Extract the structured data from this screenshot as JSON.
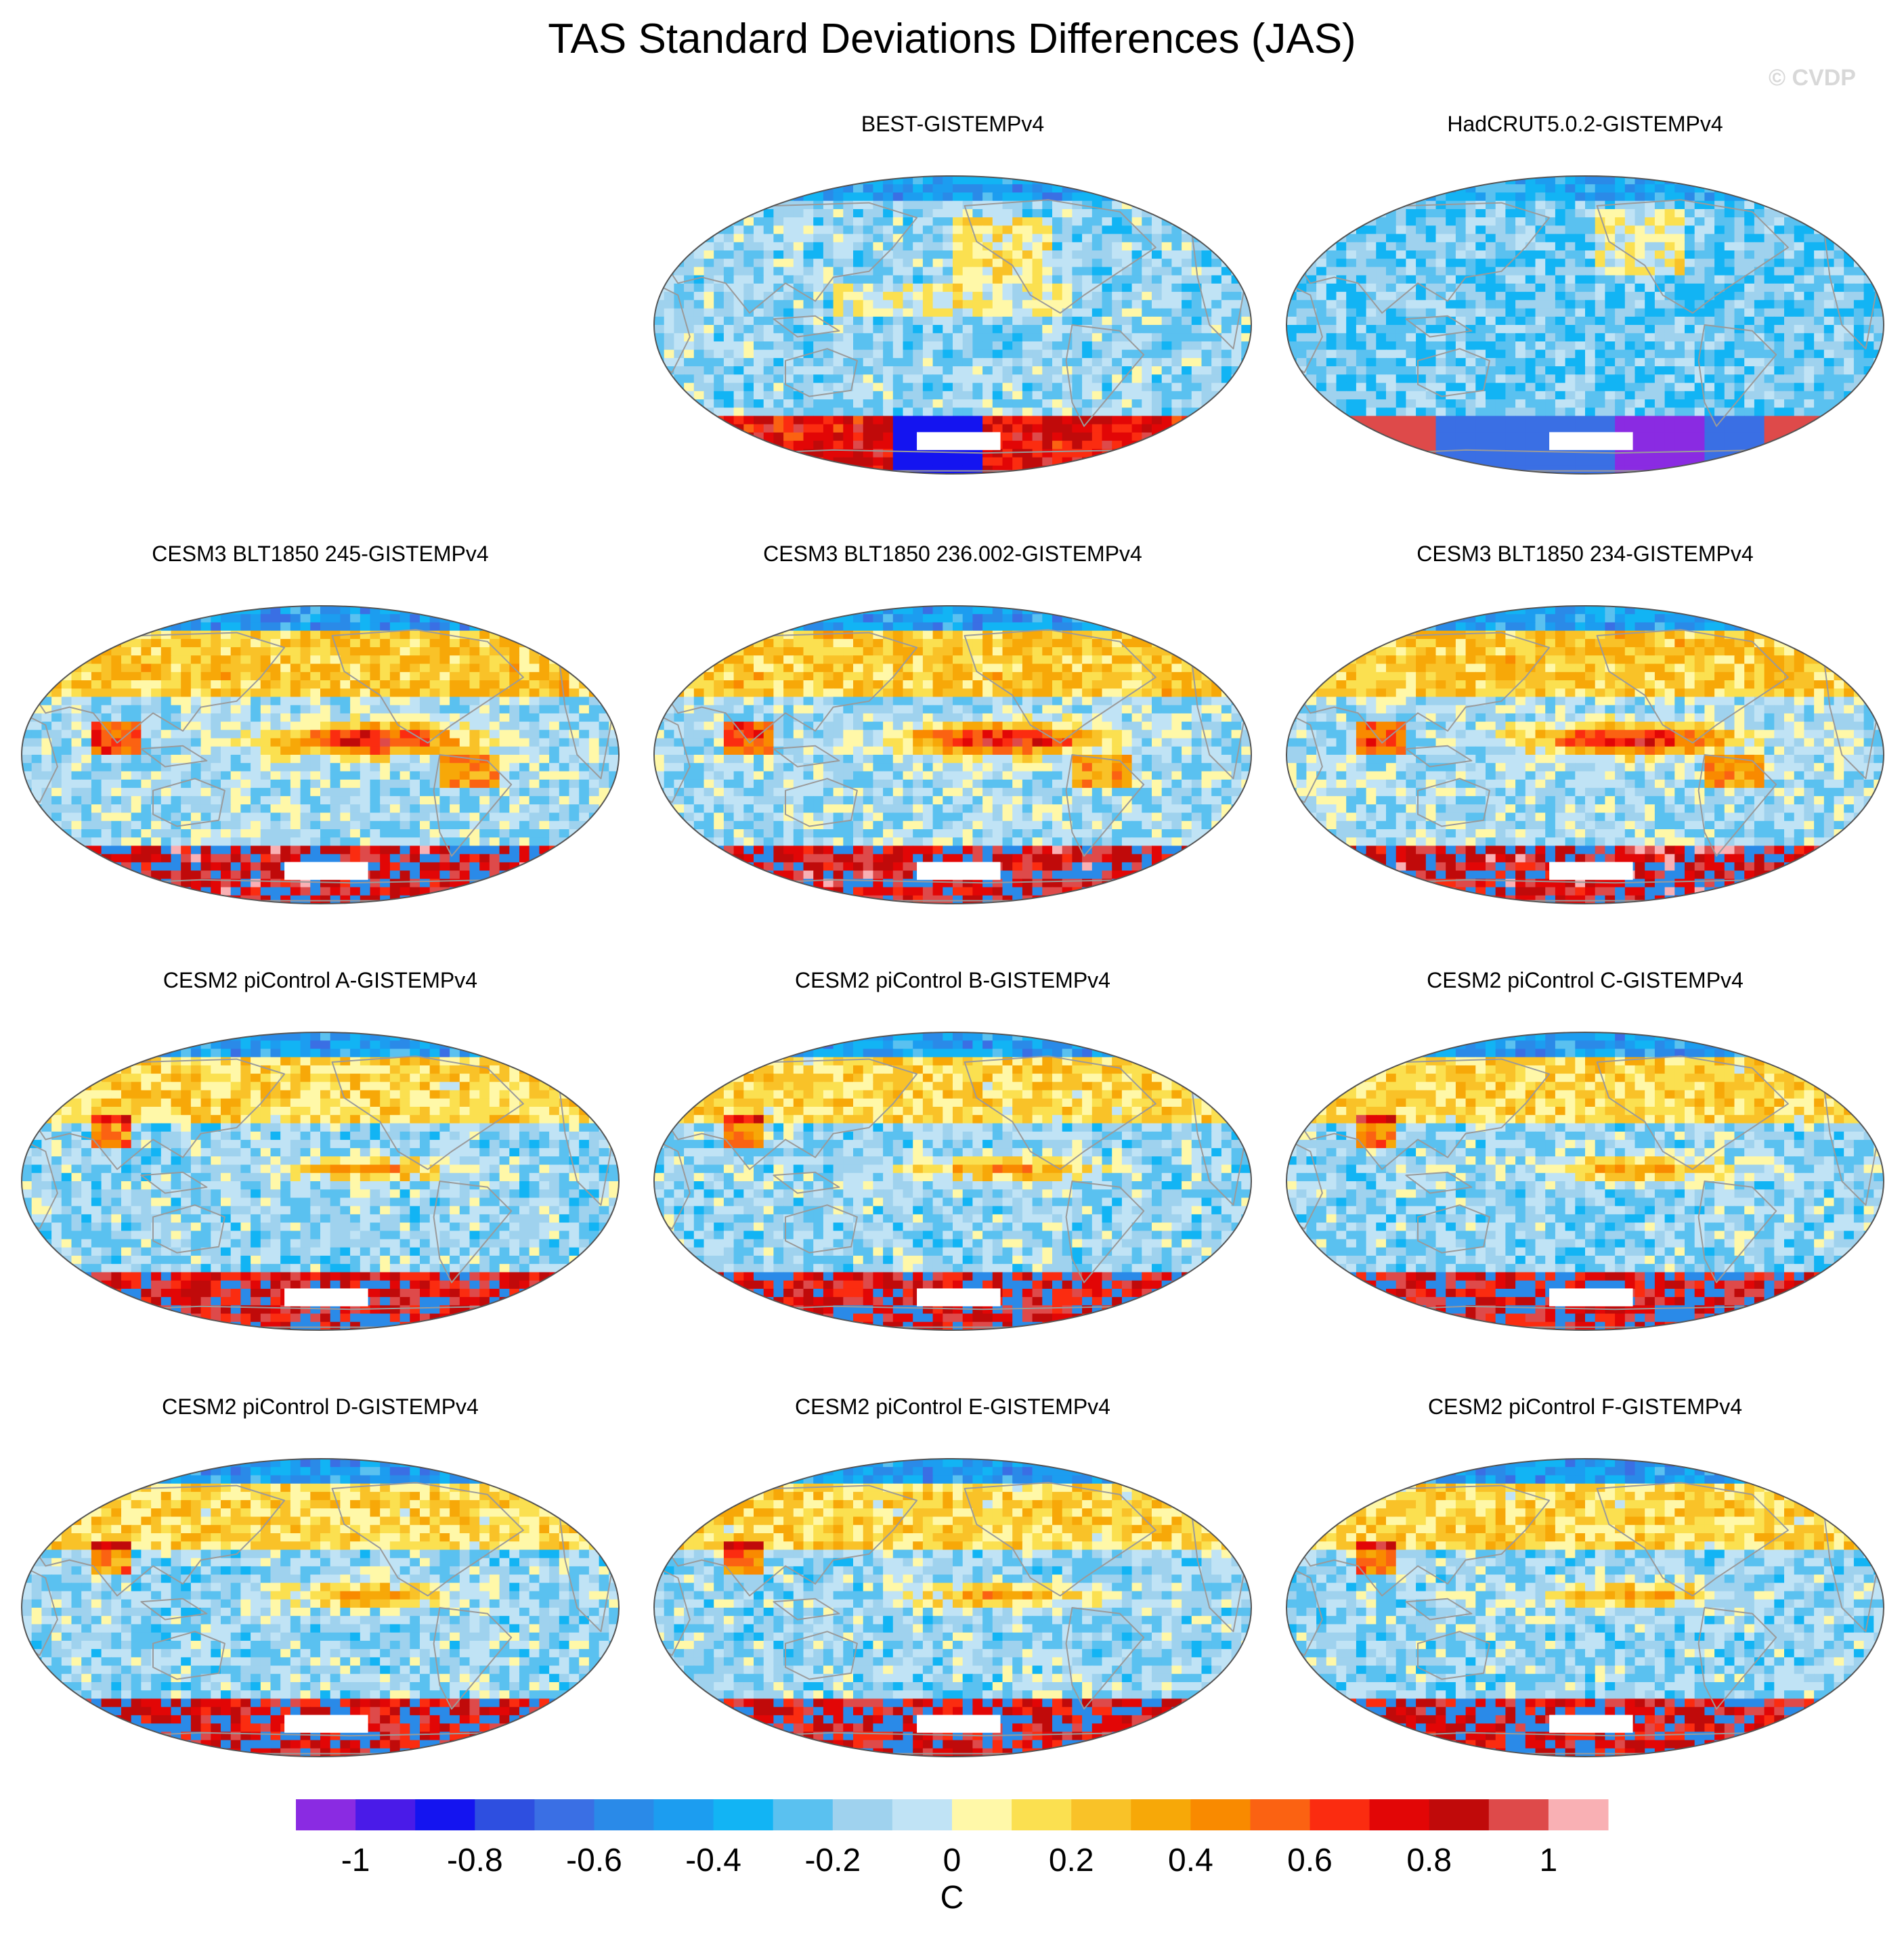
{
  "title": "TAS Standard Deviations Differences (JAS)",
  "watermark": "© CVDP",
  "chart_data": {
    "type": "heatmap",
    "title": "TAS Standard Deviations Differences (JAS)",
    "projection": "Robinson (global, Pacific-centered)",
    "variable": "TAS",
    "season": "JAS",
    "units": "C",
    "panels": [
      {
        "label": "BEST-GISTEMPv4",
        "pattern": "obs_weak"
      },
      {
        "label": "HadCRUT5.0.2-GISTEMPv4",
        "pattern": "obs_weak_neg"
      },
      {
        "label": "CESM3 BLT1850 245-GISTEMPv4",
        "pattern": "model_strong"
      },
      {
        "label": "CESM3 BLT1850 236.002-GISTEMPv4",
        "pattern": "model_strong"
      },
      {
        "label": "CESM3 BLT1850 234-GISTEMPv4",
        "pattern": "model_strong"
      },
      {
        "label": "CESM2 piControl A-GISTEMPv4",
        "pattern": "model_medium"
      },
      {
        "label": "CESM2 piControl B-GISTEMPv4",
        "pattern": "model_medium"
      },
      {
        "label": "CESM2 piControl C-GISTEMPv4",
        "pattern": "model_medium"
      },
      {
        "label": "CESM2 piControl D-GISTEMPv4",
        "pattern": "model_medium"
      },
      {
        "label": "CESM2 piControl E-GISTEMPv4",
        "pattern": "model_medium"
      },
      {
        "label": "CESM2 piControl F-GISTEMPv4",
        "pattern": "model_medium"
      }
    ],
    "colorbar": {
      "levels": [
        -1.1,
        -1.0,
        -0.9,
        -0.8,
        -0.7,
        -0.6,
        -0.5,
        -0.4,
        -0.3,
        -0.2,
        -0.1,
        0,
        0.1,
        0.2,
        0.3,
        0.4,
        0.5,
        0.6,
        0.7,
        0.8,
        0.9,
        1.0,
        1.1
      ],
      "colors": [
        "#8a2be2",
        "#4a1be8",
        "#1414f0",
        "#2e4fe0",
        "#3a6fe4",
        "#2a8ae8",
        "#1c9df0",
        "#12b4f4",
        "#5ac1f0",
        "#9fd2ee",
        "#c0e3f5",
        "#fff8a8",
        "#fbe050",
        "#f9c228",
        "#f7a808",
        "#f98a00",
        "#fb6212",
        "#fb2c10",
        "#e20606",
        "#c00a0a",
        "#de4a4a",
        "#f9b0b4"
      ],
      "tick_values": [
        -1,
        -0.8,
        -0.6,
        -0.4,
        -0.2,
        0,
        0.2,
        0.4,
        0.6,
        0.8,
        1
      ],
      "tick_labels": [
        "-1",
        "-0.8",
        "-0.6",
        "-0.4",
        "-0.2",
        "0",
        "0.2",
        "0.4",
        "0.6",
        "0.8",
        "1"
      ],
      "label": "C",
      "range": [
        -1.1,
        1.1
      ]
    },
    "colors": {
      "land_outline": "#9a9a9a",
      "map_border": "#555555",
      "background": "#ffffff"
    }
  }
}
